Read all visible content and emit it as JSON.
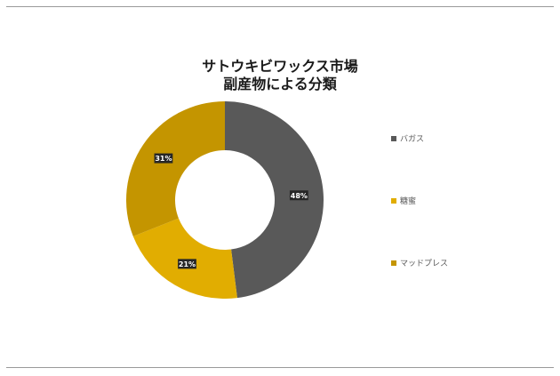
{
  "chart_data": {
    "type": "pie",
    "variant": "donut",
    "title_lines": [
      "サトウキビワックス市場",
      "副産物による分類"
    ],
    "categories": [
      "バガス",
      "糖蜜",
      "マッドプレス"
    ],
    "values": [
      48,
      21,
      31
    ],
    "data_labels": [
      "48%",
      "21%",
      "31%"
    ],
    "colors": [
      "#595959",
      "#E1AD01",
      "#C49500"
    ],
    "legend_position": "right"
  }
}
